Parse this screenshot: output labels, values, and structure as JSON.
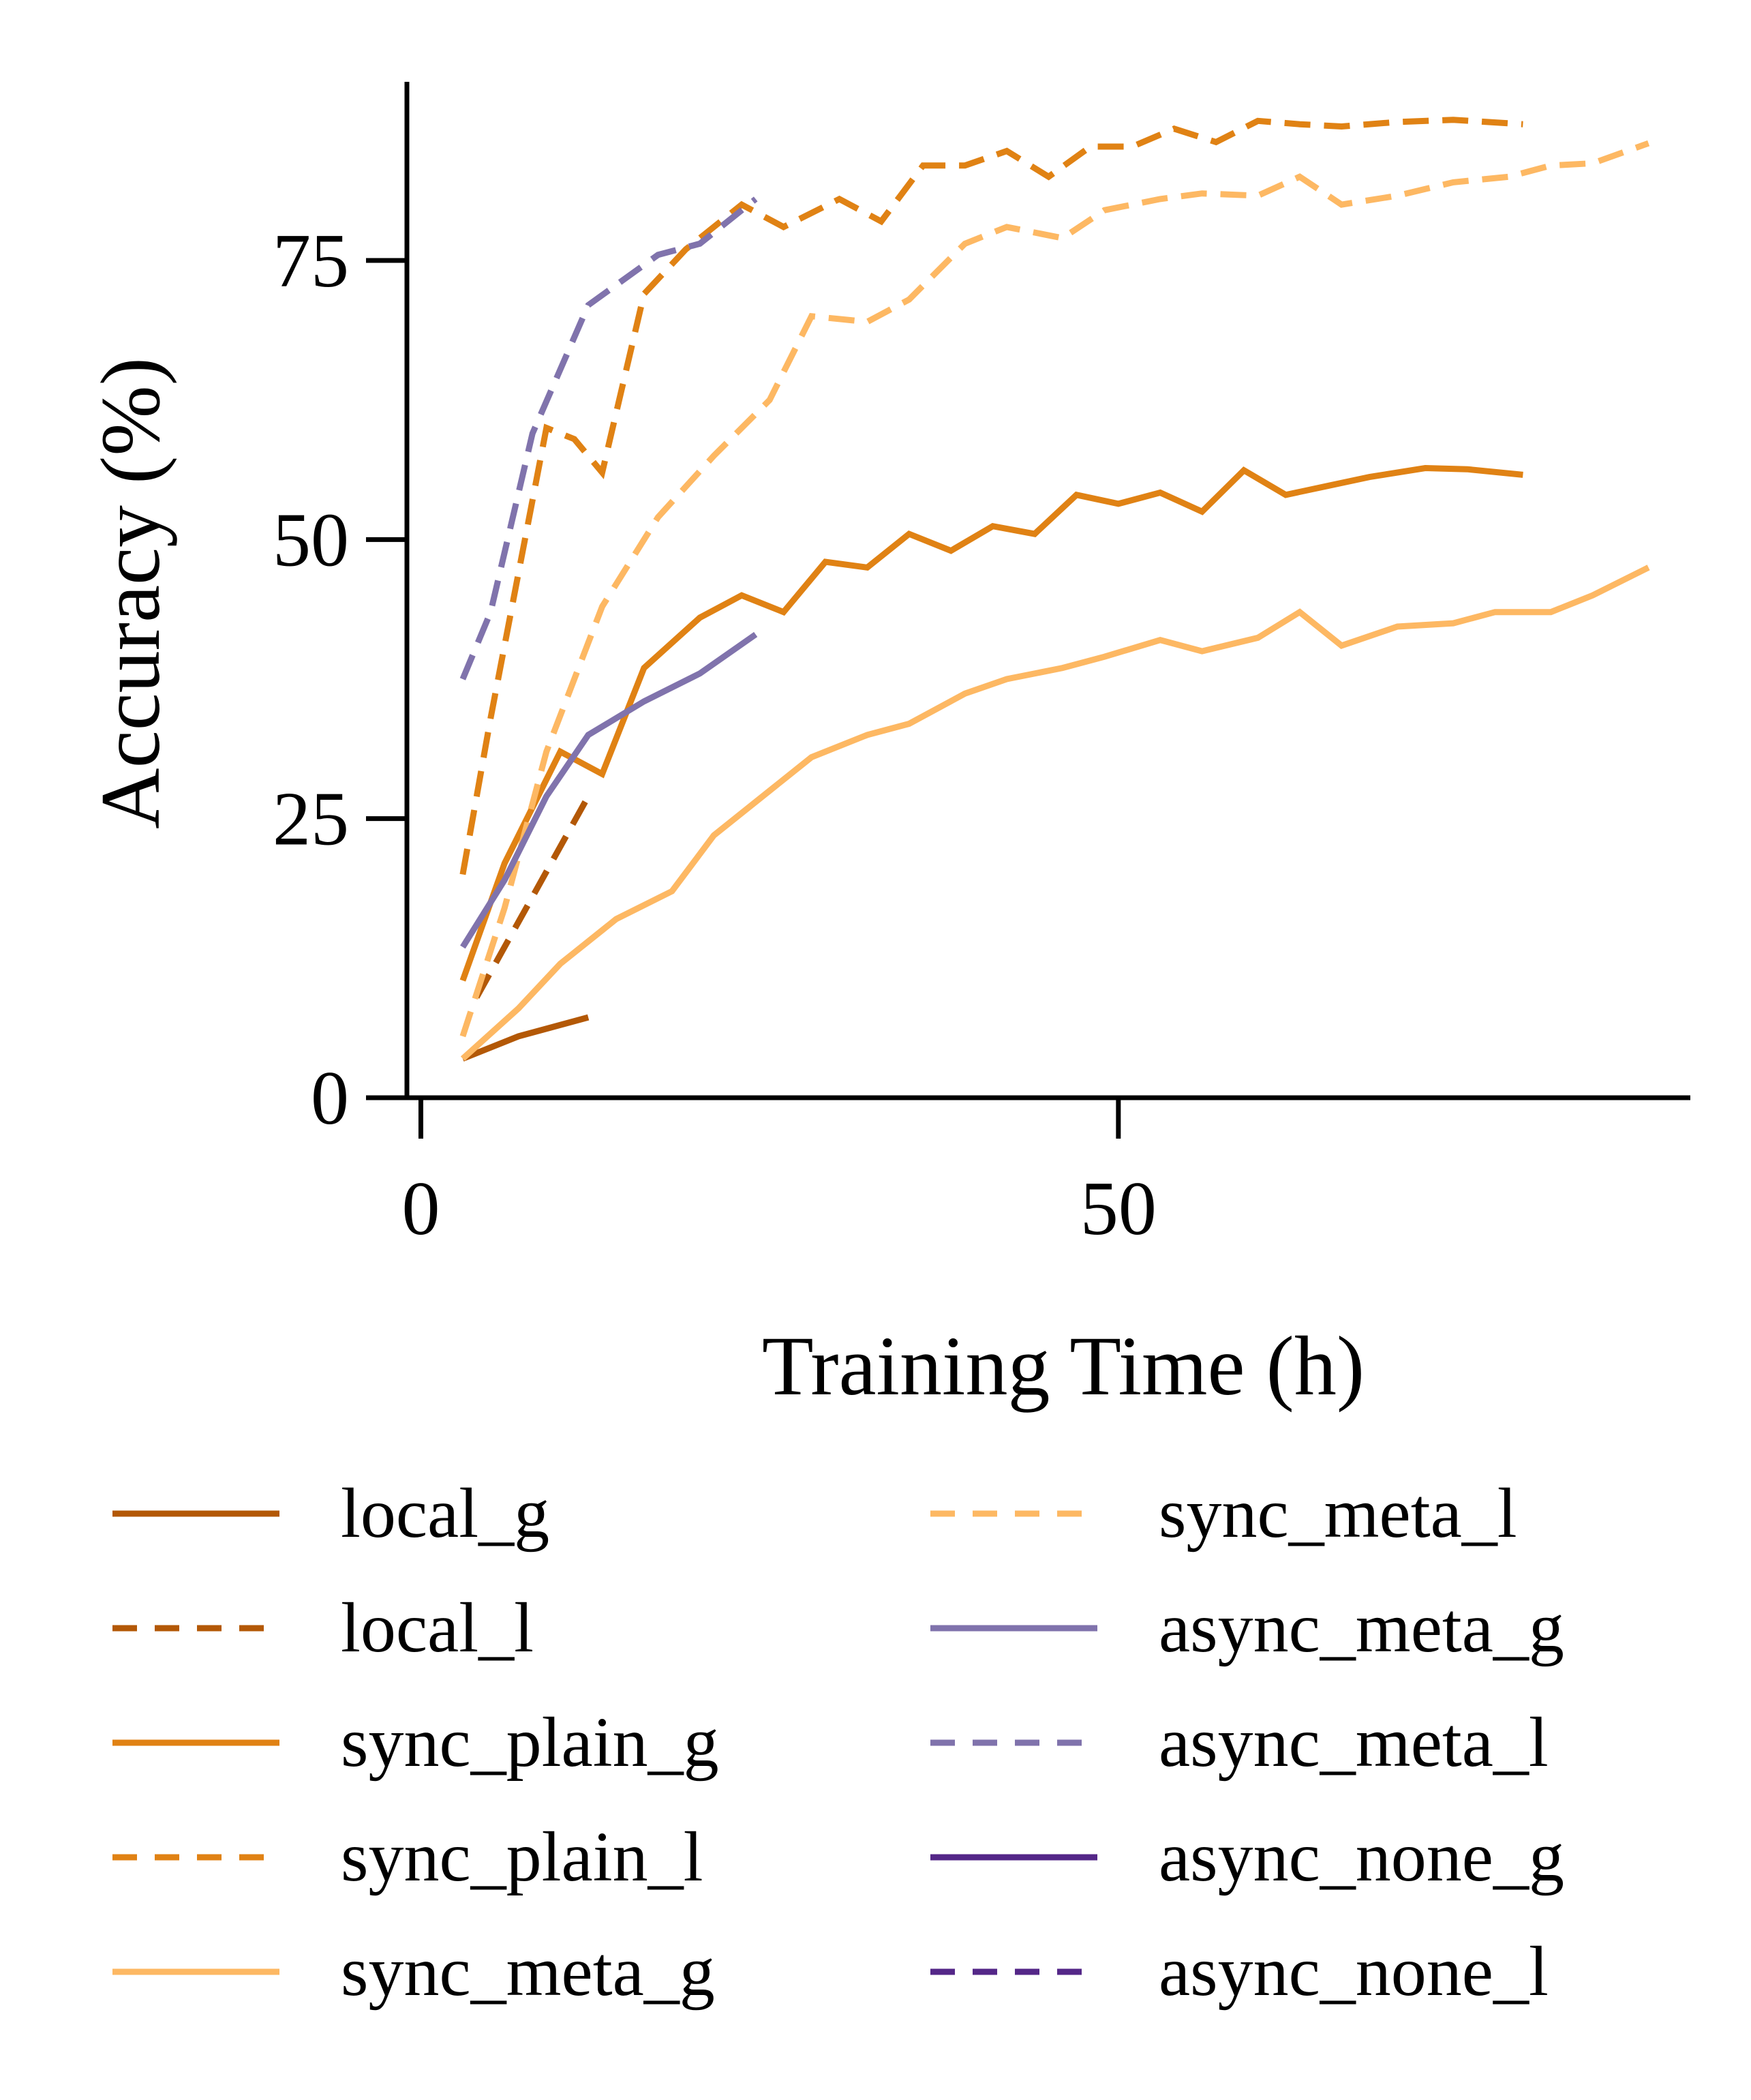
{
  "chart_data": {
    "type": "line",
    "title": "",
    "xlabel": "Training Time (h)",
    "ylabel": "Accuracy (%)",
    "xlim": [
      -1,
      91
    ],
    "ylim": [
      0,
      91
    ],
    "xticks": [
      0,
      50
    ],
    "yticks": [
      0,
      25,
      50,
      75
    ],
    "grid": false,
    "legend_position": "bottom",
    "series": [
      {
        "name": "local_g",
        "color": "#b35806",
        "dash": "solid",
        "x": [
          3,
          7,
          12
        ],
        "y": [
          3.5,
          5.5,
          7.2
        ]
      },
      {
        "name": "local_l",
        "color": "#b35806",
        "dash": "dashed",
        "x": [
          4,
          8,
          12
        ],
        "y": [
          9,
          18,
          27
        ]
      },
      {
        "name": "sync_plain_g",
        "color": "#e08214",
        "dash": "solid",
        "x": [
          3,
          6,
          10,
          13,
          16,
          20,
          23,
          26,
          29,
          32,
          35,
          38,
          41,
          44,
          47,
          50,
          53,
          56,
          59,
          62,
          65,
          68,
          72,
          75,
          79
        ],
        "y": [
          10.5,
          21,
          31,
          29,
          38.5,
          43,
          45,
          43.5,
          48,
          47.5,
          50.5,
          49,
          51.2,
          50.5,
          54,
          53.2,
          54.2,
          52.5,
          56.2,
          54,
          54.8,
          55.6,
          56.4,
          56.3,
          55.8
        ]
      },
      {
        "name": "sync_plain_l",
        "color": "#e08214",
        "dash": "dashed",
        "x": [
          3,
          5,
          7,
          9,
          11,
          13,
          16,
          19,
          23,
          26,
          30,
          33,
          36,
          39,
          42,
          45,
          48,
          51,
          54,
          57,
          60,
          63,
          66,
          70,
          74,
          79
        ],
        "y": [
          20,
          34,
          47,
          60,
          59,
          56,
          72,
          76,
          80,
          78,
          80.5,
          78.5,
          83.5,
          83.5,
          84.8,
          82.5,
          85.2,
          85.2,
          86.8,
          85.6,
          87.5,
          87.2,
          87.0,
          87.4,
          87.6,
          87.2
        ]
      },
      {
        "name": "sync_meta_g",
        "color": "#fdb863",
        "dash": "solid",
        "x": [
          3,
          7,
          10,
          14,
          18,
          21,
          25,
          28,
          32,
          35,
          39,
          42,
          46,
          49,
          53,
          56,
          60,
          63,
          66,
          70,
          74,
          77,
          81,
          84,
          88
        ],
        "y": [
          3.5,
          8,
          12,
          16,
          18.5,
          23.5,
          27.5,
          30.5,
          32.5,
          33.5,
          36.2,
          37.5,
          38.5,
          39.5,
          41,
          40,
          41.2,
          43.5,
          40.5,
          42.2,
          42.5,
          43.5,
          43.5,
          45,
          47.5
        ]
      },
      {
        "name": "sync_meta_l",
        "color": "#fdb863",
        "dash": "dashed",
        "x": [
          3,
          6,
          9,
          13,
          17,
          21,
          25,
          28,
          32,
          35,
          39,
          42,
          46,
          49,
          53,
          56,
          60,
          63,
          66,
          70,
          74,
          78,
          81,
          84,
          88
        ],
        "y": [
          5.5,
          17,
          31,
          44,
          52,
          57.5,
          62.5,
          70,
          69.5,
          71.5,
          76.5,
          78,
          77,
          79.5,
          80.5,
          81,
          80.8,
          82.5,
          80,
          80.8,
          82,
          82.5,
          83.5,
          83.7,
          85.5
        ]
      },
      {
        "name": "async_meta_g",
        "color": "#8073ac",
        "dash": "solid",
        "x": [
          3,
          6,
          9,
          12,
          16,
          20,
          24
        ],
        "y": [
          13.5,
          19.5,
          27,
          32.5,
          35.5,
          38,
          41.5
        ]
      },
      {
        "name": "async_meta_l",
        "color": "#8073ac",
        "dash": "dashed",
        "x": [
          3,
          5,
          8,
          12,
          17,
          20,
          24
        ],
        "y": [
          37.5,
          43.5,
          59.5,
          71,
          75.5,
          76.5,
          80.5
        ]
      },
      {
        "name": "async_none_g",
        "color": "#542788",
        "dash": "solid",
        "x": [],
        "y": []
      },
      {
        "name": "async_none_l",
        "color": "#542788",
        "dash": "dashed",
        "x": [],
        "y": []
      }
    ]
  }
}
